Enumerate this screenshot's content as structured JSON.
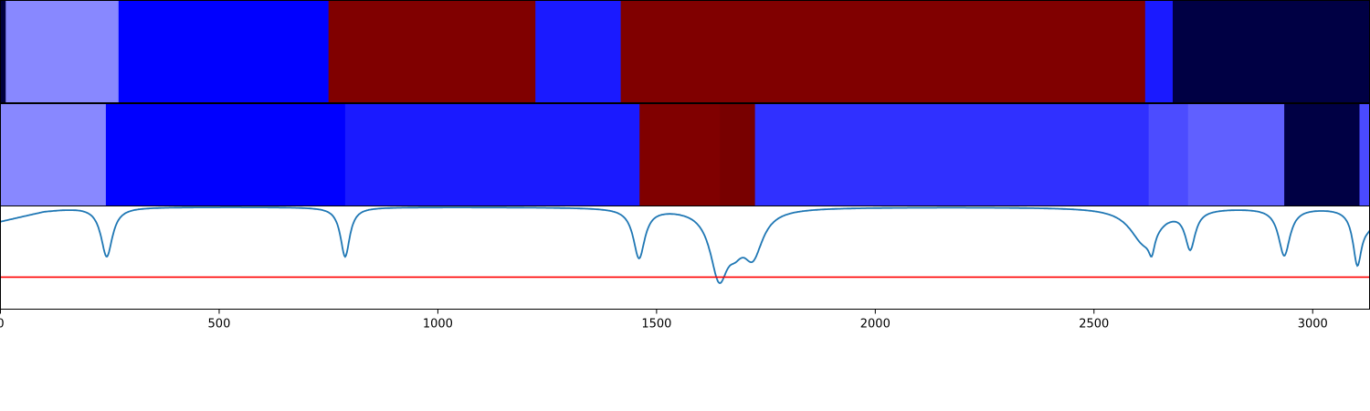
{
  "chart_data": [
    {
      "type": "heatmap",
      "x_range": [
        0,
        3130
      ],
      "segments": [
        {
          "start": 0,
          "end": 12,
          "color": "#00003d"
        },
        {
          "start": 12,
          "end": 270,
          "color": "#8888ff"
        },
        {
          "start": 270,
          "end": 750,
          "color": "#0000ff"
        },
        {
          "start": 750,
          "end": 1223,
          "color": "#800000"
        },
        {
          "start": 1223,
          "end": 1418,
          "color": "#1a1aff"
        },
        {
          "start": 1418,
          "end": 2617,
          "color": "#800000"
        },
        {
          "start": 2617,
          "end": 2680,
          "color": "#1a1aff"
        },
        {
          "start": 2680,
          "end": 3130,
          "color": "#000044"
        }
      ]
    },
    {
      "type": "heatmap",
      "x_range": [
        0,
        3130
      ],
      "segments": [
        {
          "start": 0,
          "end": 241,
          "color": "#8888ff"
        },
        {
          "start": 241,
          "end": 788,
          "color": "#0000ff"
        },
        {
          "start": 788,
          "end": 1461,
          "color": "#1a1aff"
        },
        {
          "start": 1461,
          "end": 1645,
          "color": "#800000"
        },
        {
          "start": 1645,
          "end": 1725,
          "color": "#780000"
        },
        {
          "start": 1725,
          "end": 2625,
          "color": "#3030ff"
        },
        {
          "start": 2625,
          "end": 2715,
          "color": "#4c4cff"
        },
        {
          "start": 2715,
          "end": 2935,
          "color": "#6060ff"
        },
        {
          "start": 2935,
          "end": 3107,
          "color": "#000044"
        },
        {
          "start": 3107,
          "end": 3130,
          "color": "#4a4aff"
        }
      ]
    },
    {
      "type": "line",
      "xlim": [
        0,
        3130
      ],
      "ylim": [
        0,
        1
      ],
      "xticks": [
        0,
        500,
        1000,
        1500,
        2000,
        2500,
        3000
      ],
      "threshold": 0.31,
      "threshold_color": "#ff0000",
      "line_color": "#1f77b4",
      "curve": {
        "base": 0.99,
        "start": [
          [
            0,
            0.85
          ],
          [
            30,
            0.88
          ],
          [
            60,
            0.91
          ],
          [
            100,
            0.95
          ],
          [
            140,
            0.97
          ],
          [
            180,
            0.985
          ],
          [
            205,
            0.99
          ]
        ],
        "dips": [
          {
            "x": 243,
            "depth": 0.48,
            "width": 16
          },
          {
            "x": 788,
            "depth": 0.48,
            "width": 13
          },
          {
            "x": 1460,
            "depth": 0.48,
            "width": 16
          },
          {
            "x": 1643,
            "depth": 0.63,
            "width": 25
          },
          {
            "x": 1720,
            "depth": 0.42,
            "width": 28
          },
          {
            "x": 1680,
            "depth": 0.2,
            "width": 22
          },
          {
            "x": 2615,
            "depth": 0.34,
            "width": 40
          },
          {
            "x": 2632,
            "depth": 0.18,
            "width": 8
          },
          {
            "x": 2720,
            "depth": 0.37,
            "width": 14
          },
          {
            "x": 2935,
            "depth": 0.46,
            "width": 16
          },
          {
            "x": 3102,
            "depth": 0.49,
            "width": 12
          },
          {
            "x": 3128,
            "depth": 0.15,
            "width": 25
          }
        ]
      }
    }
  ]
}
